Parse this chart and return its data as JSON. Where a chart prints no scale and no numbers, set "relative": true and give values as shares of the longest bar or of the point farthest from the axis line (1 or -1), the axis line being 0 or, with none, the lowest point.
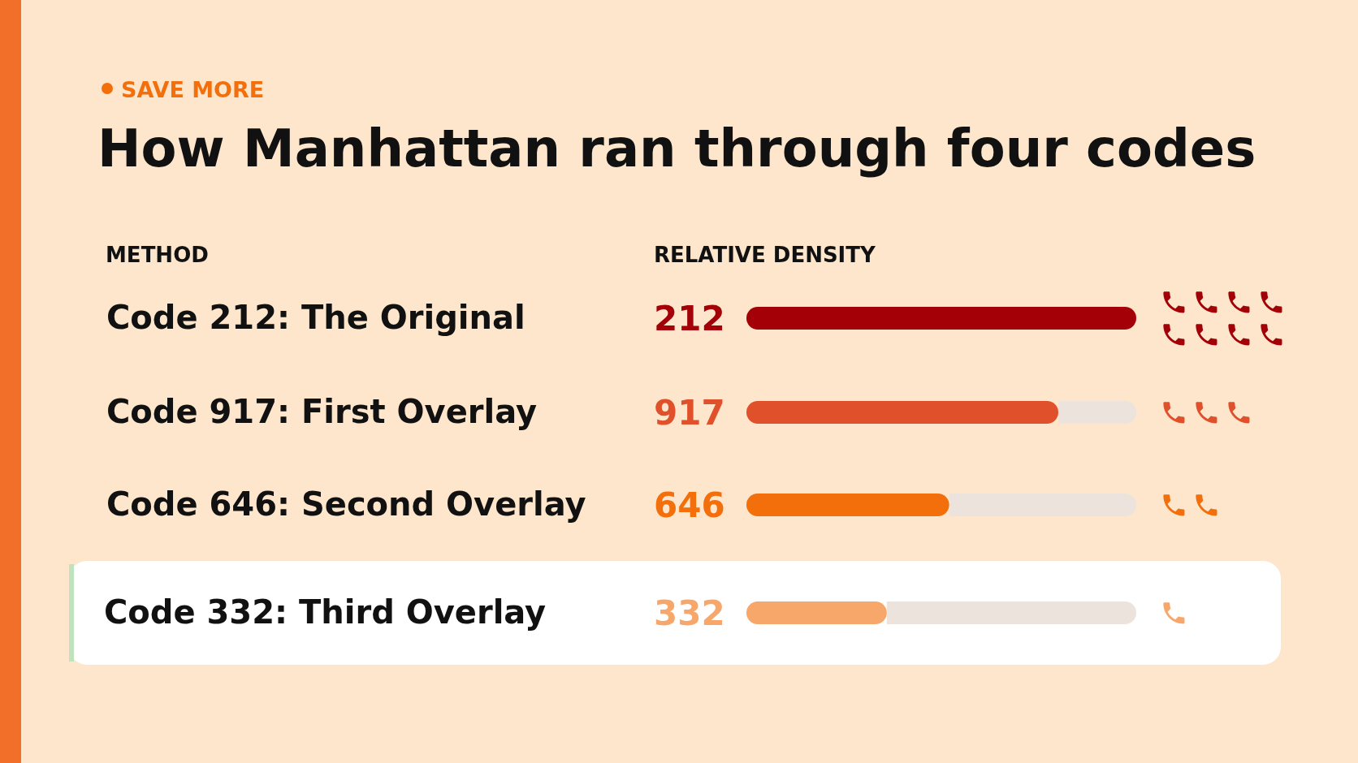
{
  "chart_data": {
    "type": "bar",
    "orientation": "horizontal",
    "relative": true,
    "subtitle": "SAVE MORE",
    "title": "How Manhattan ran through four codes",
    "ylabel": "METHOD",
    "xlabel": "RELATIVE DENSITY",
    "categories": [
      "Code 212: The Original",
      "Code 917: First Overlay",
      "Code 646: Second Overlay",
      "Code 332: Third Overlay"
    ],
    "values": [
      1,
      0.8,
      0.52,
      0.36
    ],
    "colors": [
      "#a30008",
      "#e0502a",
      "#f26f0c",
      "#f7a76a"
    ],
    "annotations": [
      "212",
      "917",
      "646",
      "332"
    ],
    "bands": [
      {
        "axis": "y",
        "from": "Code 332: Third Overlay",
        "to": "Code 332: Third Overlay",
        "color": "#ffffff"
      }
    ]
  }
}
